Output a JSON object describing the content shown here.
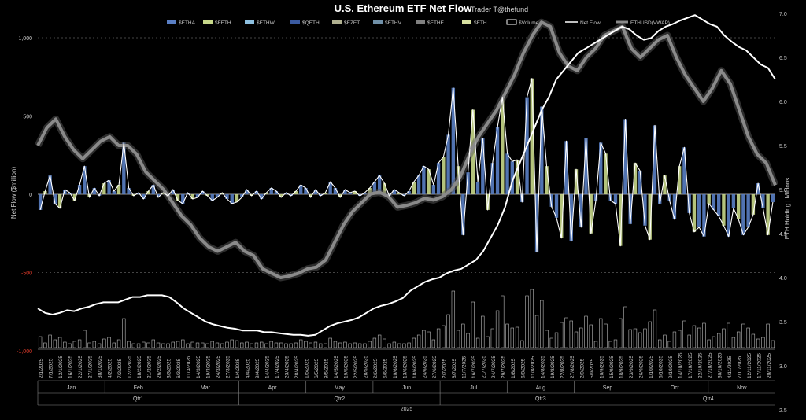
{
  "header": {
    "title": "U.S. Ethereum ETF Net Flow",
    "author": "Trader T@thefund"
  },
  "colors": {
    "background": "#000000",
    "bars_primary": "#5a7fc4",
    "bars_secondary": "#c8d88a",
    "net_flow_line": "#ffffff",
    "vwap_line": "#8a8a8a",
    "negative_label": "#e03a2a"
  },
  "chart_data": {
    "type": "bar",
    "title": "U.S. Ethereum ETF Net Flow",
    "ylabel": "Net Flow ($million)",
    "y2label": "ETH Holding | Millions",
    "ylim": [
      -1000,
      1000
    ],
    "y2lim": [
      2.5,
      7.0
    ],
    "y_ticks": [
      "1,000",
      "500",
      "0",
      "-500",
      "-1,000"
    ],
    "y2_ticks": [
      "7.0",
      "6.5",
      "6.0",
      "5.5",
      "5.0",
      "4.5",
      "4.0",
      "3.5",
      "3.0",
      "2.5"
    ],
    "legend": [
      "$ETHA",
      "$FETH",
      "$ETHW",
      "$QETH",
      "$EZET",
      "$ETHV",
      "$ETHE",
      "$ETH",
      "$Volume",
      "Net Flow",
      "ETHUSD(VWAP)"
    ],
    "legend_placement": "top",
    "grid": true,
    "x_tick_labels": [
      "2/1/2025",
      "7/1/2025",
      "13/1/2025",
      "16/1/2025",
      "22/1/2025",
      "27/1/2025",
      "30/1/2025",
      "4/2/2025",
      "7/2/2025",
      "12/2/2025",
      "18/2/2025",
      "21/2/2025",
      "26/2/2025",
      "3/3/2025",
      "6/3/2025",
      "11/3/2025",
      "14/3/2025",
      "19/3/2025",
      "24/3/2025",
      "27/3/2025",
      "1/4/2025",
      "4/4/2025",
      "9/4/2025",
      "14/4/2025",
      "17/4/2025",
      "23/4/2025",
      "28/4/2025",
      "1/5/2025",
      "6/5/2025",
      "9/5/2025",
      "14/5/2025",
      "19/5/2025",
      "22/5/2025",
      "28/5/2025",
      "2/6/2025",
      "5/6/2025",
      "10/6/2025",
      "13/6/2025",
      "18/6/2025",
      "24/6/2025",
      "27/6/2025",
      "2/7/2025",
      "8/7/2025",
      "11/7/2025",
      "16/7/2025",
      "21/7/2025",
      "24/7/2025",
      "29/7/2025",
      "1/8/2025",
      "6/8/2025",
      "11/8/2025",
      "14/8/2025",
      "19/8/2025",
      "22/8/2025",
      "27/8/2025",
      "2/9/2025",
      "5/9/2025",
      "10/9/2025",
      "15/9/2025",
      "18/9/2025",
      "23/9/2025",
      "26/9/2025",
      "1/10/2025",
      "6/10/2025",
      "9/10/2025",
      "14/10/2025",
      "17/10/2025",
      "22/10/2025",
      "27/10/2025",
      "30/10/2025",
      "4/11/2025",
      "7/11/2025",
      "12/11/2025",
      "17/11/2025",
      "20/11/2025"
    ],
    "months": [
      "Jan",
      "Feb",
      "Mar",
      "Apr",
      "May",
      "Jun",
      "Jul",
      "Aug",
      "Sep",
      "Oct",
      "Nov"
    ],
    "quarters": [
      "Qtr1",
      "Qtr2",
      "Qtr3",
      "Qtr4"
    ],
    "year": "2025",
    "series": [
      {
        "name": "Net Flow",
        "values": [
          -100,
          20,
          120,
          -60,
          -90,
          30,
          10,
          -40,
          60,
          180,
          -20,
          40,
          -10,
          70,
          90,
          20,
          60,
          330,
          40,
          -10,
          10,
          -30,
          20,
          60,
          -20,
          10,
          -10,
          30,
          -40,
          -60,
          10,
          -30,
          -20,
          20,
          -10,
          -40,
          -20,
          10,
          -30,
          -60,
          -50,
          -20,
          30,
          -10,
          20,
          -30,
          10,
          40,
          20,
          -20,
          10,
          -10,
          20,
          60,
          40,
          -20,
          30,
          -10,
          10,
          80,
          40,
          -20,
          30,
          10,
          20,
          -10,
          10,
          40,
          80,
          120,
          70,
          -10,
          30,
          10,
          -10,
          20,
          80,
          120,
          180,
          160,
          60,
          200,
          240,
          380,
          680,
          180,
          -260,
          140,
          540,
          80,
          360,
          -100,
          200,
          430,
          620,
          260,
          210,
          220,
          -50,
          620,
          740,
          -370,
          560,
          180,
          -80,
          -150,
          -280,
          340,
          -300,
          160,
          -210,
          360,
          -250,
          -40,
          330,
          260,
          -40,
          -60,
          -330,
          480,
          -190,
          200,
          150,
          -200,
          -290,
          440,
          -60,
          120,
          -40,
          -160,
          180,
          300,
          -120,
          -240,
          -210,
          -270,
          -60,
          -100,
          -140,
          -200,
          -270,
          -90,
          -160,
          -260,
          -210,
          -130,
          70,
          -90,
          -260,
          -50
        ]
      },
      {
        "name": "ETH Holding",
        "values": [
          3.65,
          3.6,
          3.58,
          3.6,
          3.63,
          3.62,
          3.65,
          3.67,
          3.7,
          3.72,
          3.72,
          3.72,
          3.75,
          3.78,
          3.78,
          3.8,
          3.8,
          3.8,
          3.78,
          3.72,
          3.65,
          3.6,
          3.55,
          3.5,
          3.47,
          3.45,
          3.43,
          3.42,
          3.4,
          3.4,
          3.4,
          3.38,
          3.38,
          3.37,
          3.36,
          3.35,
          3.35,
          3.34,
          3.35,
          3.4,
          3.45,
          3.48,
          3.5,
          3.52,
          3.55,
          3.6,
          3.65,
          3.68,
          3.7,
          3.73,
          3.77,
          3.85,
          3.9,
          3.95,
          3.98,
          4.0,
          4.05,
          4.08,
          4.1,
          4.15,
          4.2,
          4.3,
          4.45,
          4.6,
          4.8,
          5.1,
          5.3,
          5.5,
          5.7,
          5.9,
          6.05,
          6.25,
          6.35,
          6.45,
          6.55,
          6.6,
          6.65,
          6.7,
          6.75,
          6.8,
          6.85,
          6.82,
          6.75,
          6.7,
          6.72,
          6.8,
          6.85,
          6.88,
          6.92,
          6.95,
          6.98,
          6.93,
          6.88,
          6.85,
          6.75,
          6.68,
          6.62,
          6.58,
          6.5,
          6.42,
          6.38,
          6.25
        ]
      },
      {
        "name": "ETHUSD(VWAP)",
        "values": [
          5.5,
          5.7,
          5.8,
          5.6,
          5.45,
          5.35,
          5.45,
          5.55,
          5.6,
          5.5,
          5.5,
          5.4,
          5.2,
          5.1,
          5.0,
          4.85,
          4.7,
          4.6,
          4.45,
          4.35,
          4.3,
          4.35,
          4.4,
          4.3,
          4.25,
          4.1,
          4.05,
          4.0,
          4.02,
          4.05,
          4.1,
          4.12,
          4.2,
          4.4,
          4.6,
          4.75,
          4.85,
          4.95,
          4.97,
          4.92,
          4.8,
          4.82,
          4.85,
          4.9,
          4.88,
          4.92,
          5.0,
          5.15,
          5.4,
          5.6,
          5.75,
          5.9,
          6.1,
          6.3,
          6.55,
          6.75,
          6.9,
          6.85,
          6.55,
          6.4,
          6.35,
          6.5,
          6.6,
          6.75,
          6.8,
          6.85,
          6.6,
          6.5,
          6.6,
          6.7,
          6.75,
          6.5,
          6.3,
          6.15,
          6.0,
          6.15,
          6.35,
          6.2,
          5.9,
          5.6,
          5.4,
          5.3,
          5.05
        ]
      }
    ]
  }
}
